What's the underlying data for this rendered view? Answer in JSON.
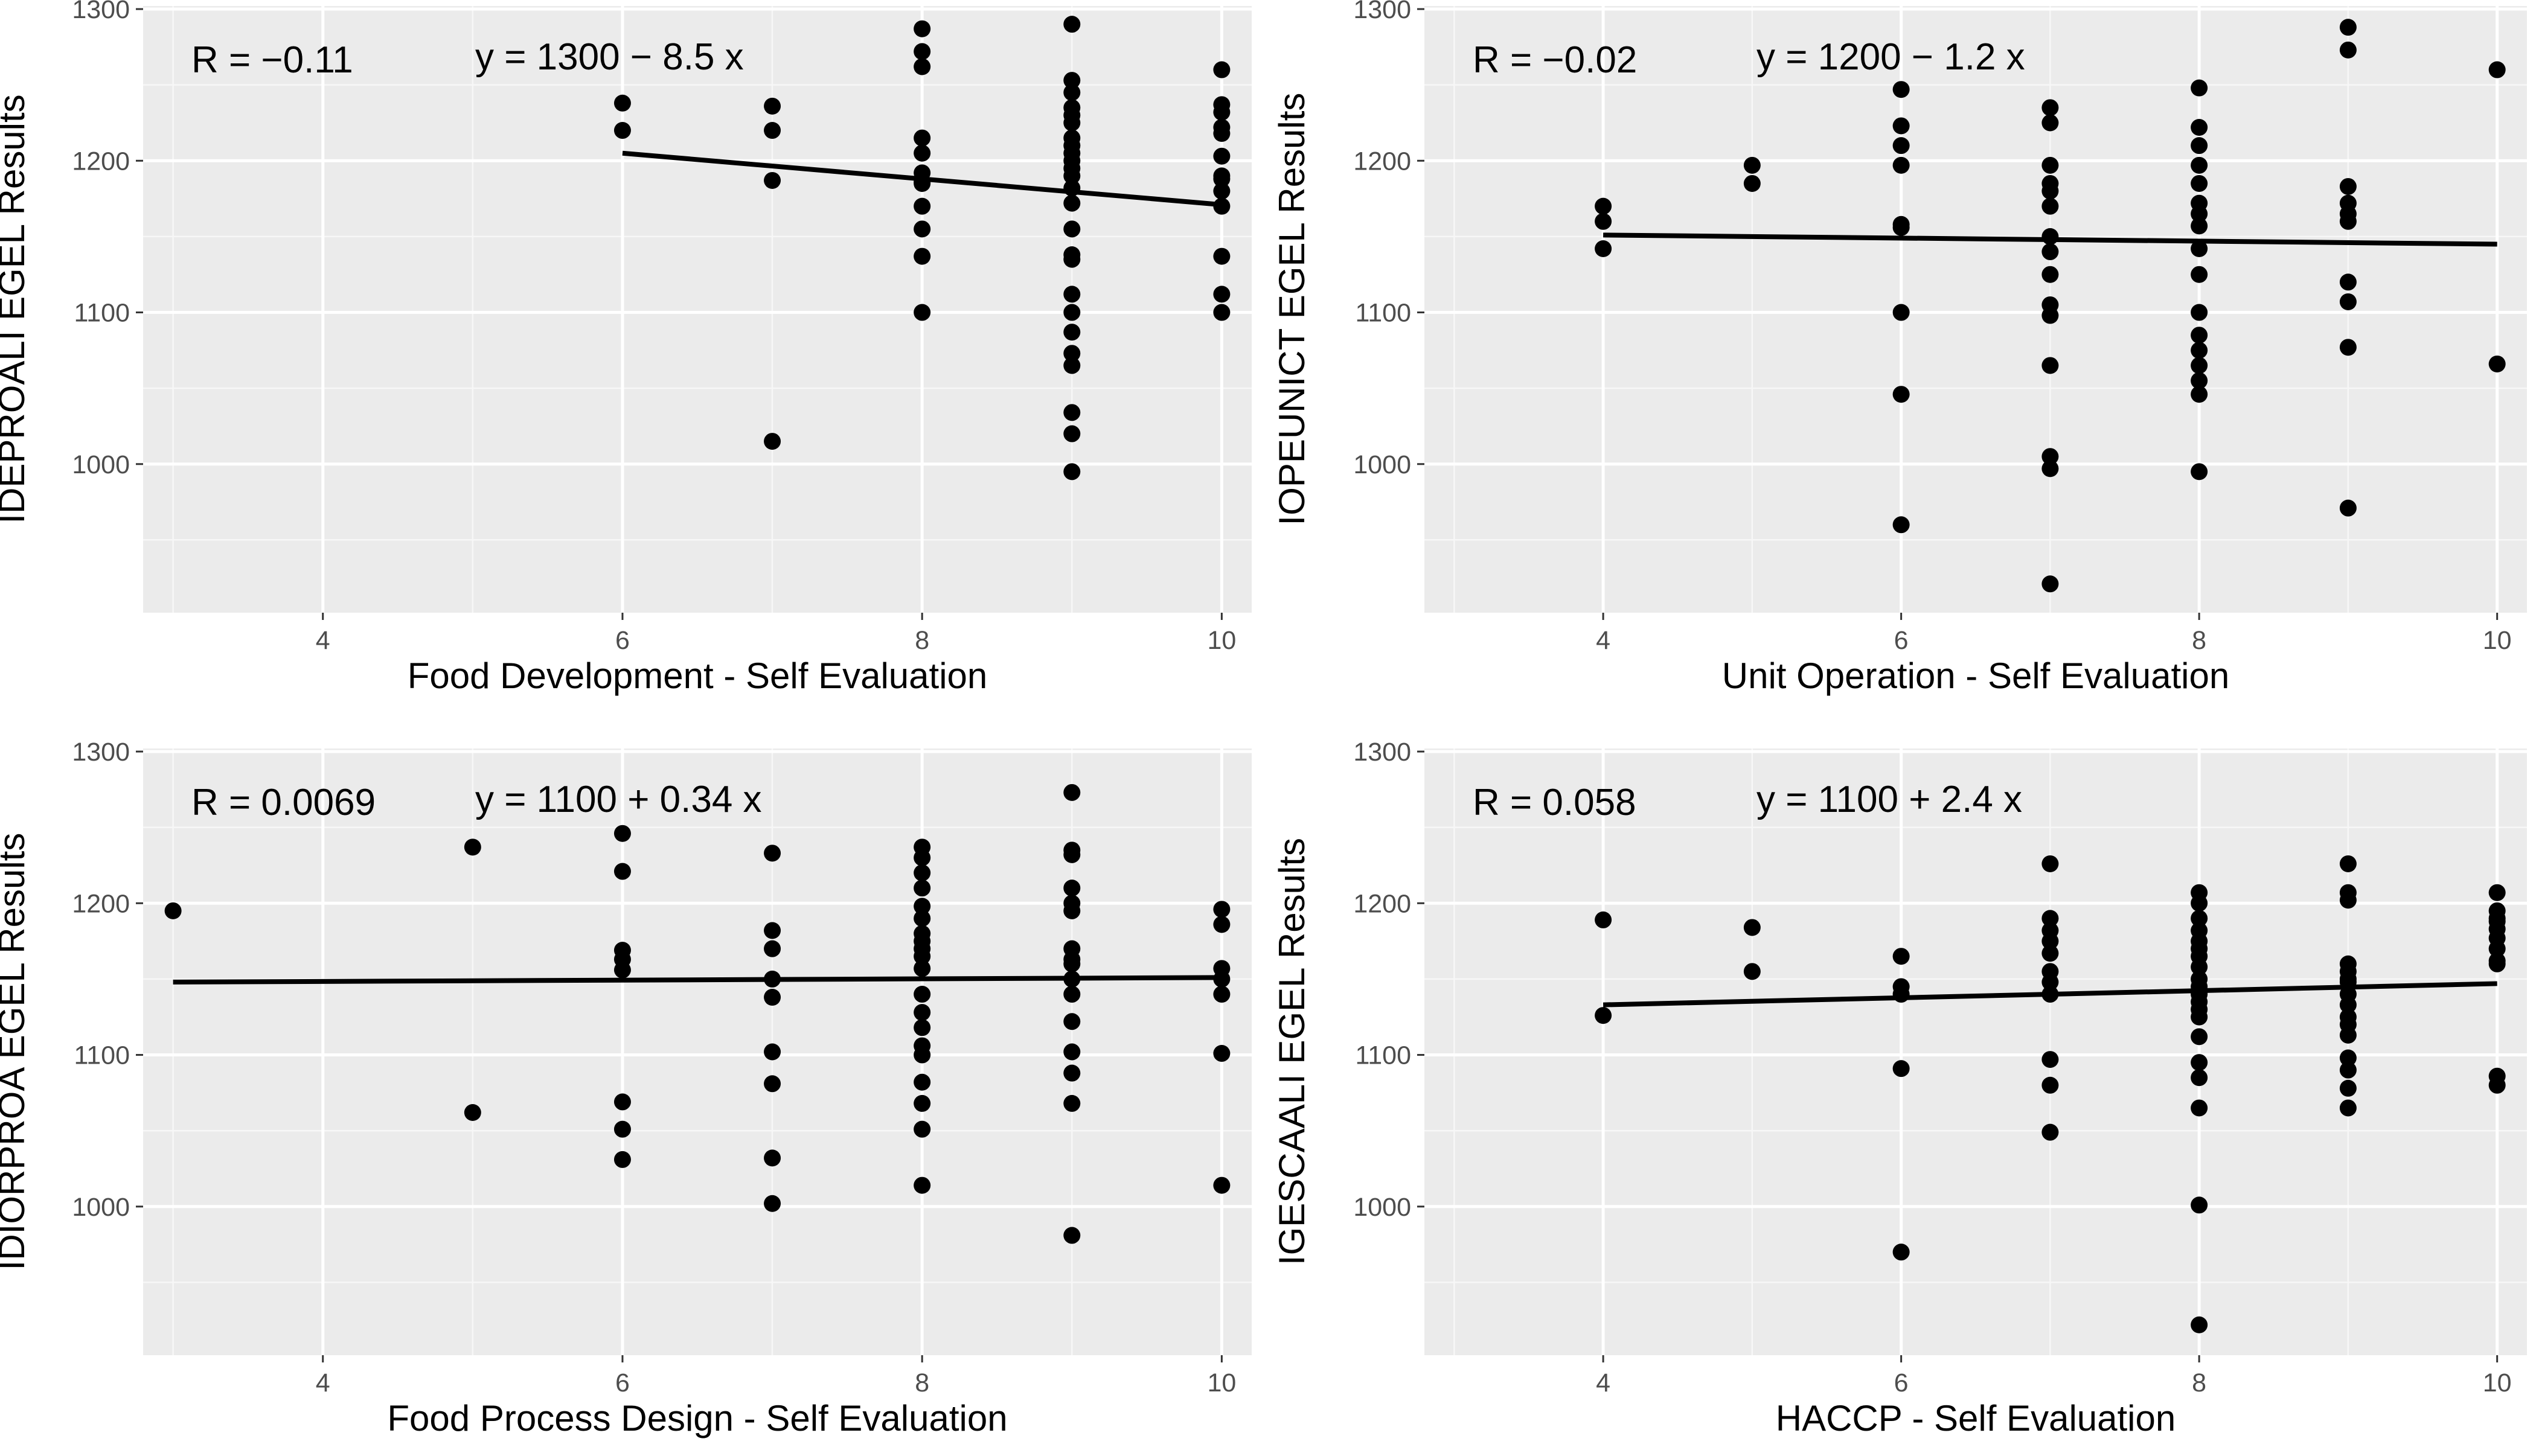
{
  "chart_data": [
    {
      "type": "scatter",
      "xlabel": "Food Development - Self Evaluation",
      "ylabel": "IDEPROALI EGEL Results",
      "xlim": [
        2.8,
        10.2
      ],
      "ylim": [
        902,
        1302
      ],
      "xticks": [
        "4",
        "6",
        "8",
        "10"
      ],
      "yticks": [
        "1000",
        "1100",
        "1200",
        "1300"
      ],
      "annotation_r": "R = −0.11",
      "annotation_eq": "y = 1300 − 8.5 x",
      "fit_line": {
        "x": [
          6,
          10
        ],
        "y": [
          1205,
          1171
        ]
      },
      "points": {
        "x": [
          6,
          6,
          7,
          7,
          7,
          7,
          8,
          8,
          8,
          8,
          8,
          8,
          8,
          8,
          8,
          8,
          8,
          8,
          9,
          9,
          9,
          9,
          9,
          9,
          9,
          9,
          9,
          9,
          9,
          9,
          9,
          9,
          9,
          9,
          9,
          9,
          9,
          9,
          9,
          9,
          9,
          9,
          9,
          10,
          10,
          10,
          10,
          10,
          10,
          10,
          10,
          10,
          10,
          10,
          10,
          10
        ],
        "y": [
          1238,
          1220,
          1236,
          1220,
          1187,
          1015,
          1287,
          1272,
          1262,
          1215,
          1205,
          1192,
          1186,
          1170,
          1155,
          1137,
          1100,
          1185,
          1290,
          1253,
          1245,
          1235,
          1225,
          1215,
          1205,
          1195,
          1190,
          1182,
          1172,
          1155,
          1138,
          1135,
          1112,
          1100,
          1087,
          1073,
          1065,
          1034,
          1020,
          995,
          1210,
          1230,
          1200,
          1260,
          1237,
          1232,
          1222,
          1218,
          1203,
          1190,
          1180,
          1170,
          1137,
          1112,
          1100,
          1188
        ]
      }
    },
    {
      "type": "scatter",
      "xlabel": "Unit Operation - Self Evaluation",
      "ylabel": "IOPEUNICT EGEL Results",
      "xlim": [
        2.8,
        10.2
      ],
      "ylim": [
        902,
        1302
      ],
      "xticks": [
        "4",
        "6",
        "8",
        "10"
      ],
      "yticks": [
        "1000",
        "1100",
        "1200",
        "1300"
      ],
      "annotation_r": "R = −0.02",
      "annotation_eq": "y = 1200 − 1.2 x",
      "fit_line": {
        "x": [
          4,
          10
        ],
        "y": [
          1151,
          1145
        ]
      },
      "points": {
        "x": [
          4,
          4,
          4,
          5,
          5,
          6,
          6,
          6,
          6,
          6,
          6,
          6,
          6,
          6,
          7,
          7,
          7,
          7,
          7,
          7,
          7,
          7,
          7,
          7,
          7,
          7,
          7,
          7,
          7,
          8,
          8,
          8,
          8,
          8,
          8,
          8,
          8,
          8,
          8,
          8,
          8,
          8,
          8,
          8,
          8,
          8,
          9,
          9,
          9,
          9,
          9,
          9,
          9,
          9,
          9,
          9,
          10,
          10
        ],
        "y": [
          1170,
          1160,
          1142,
          1197,
          1185,
          1247,
          1223,
          1210,
          1197,
          1158,
          1100,
          1046,
          960,
          1156,
          1235,
          1225,
          1197,
          1185,
          1170,
          1140,
          1125,
          1105,
          1098,
          1065,
          1005,
          997,
          921,
          1180,
          1150,
          1248,
          1222,
          1210,
          1197,
          1185,
          1172,
          1157,
          1142,
          1125,
          1100,
          1085,
          1075,
          1065,
          1055,
          1046,
          995,
          1165,
          1288,
          1273,
          1183,
          1172,
          1160,
          1120,
          1107,
          1077,
          971,
          1165,
          1260,
          1066
        ]
      }
    },
    {
      "type": "scatter",
      "xlabel": "Food Process Design - Self Evaluation",
      "ylabel": "IDIORPROA EGEL Results",
      "xlim": [
        2.8,
        10.2
      ],
      "ylim": [
        902,
        1302
      ],
      "xticks": [
        "4",
        "6",
        "8",
        "10"
      ],
      "yticks": [
        "1000",
        "1100",
        "1200",
        "1300"
      ],
      "annotation_r": "R = 0.0069",
      "annotation_eq": "y = 1100 + 0.34 x",
      "fit_line": {
        "x": [
          3,
          10
        ],
        "y": [
          1148,
          1151
        ]
      },
      "points": {
        "x": [
          3,
          5,
          5,
          6,
          6,
          6,
          6,
          6,
          6,
          6,
          6,
          7,
          7,
          7,
          7,
          7,
          7,
          7,
          7,
          7,
          8,
          8,
          8,
          8,
          8,
          8,
          8,
          8,
          8,
          8,
          8,
          8,
          8,
          8,
          8,
          8,
          8,
          8,
          8,
          8,
          9,
          9,
          9,
          9,
          9,
          9,
          9,
          9,
          9,
          9,
          9,
          9,
          9,
          9,
          9,
          9,
          10,
          10,
          10,
          10,
          10,
          10,
          10
        ],
        "y": [
          1195,
          1237,
          1062,
          1246,
          1221,
          1169,
          1163,
          1156,
          1069,
          1051,
          1031,
          1233,
          1182,
          1170,
          1138,
          1102,
          1081,
          1032,
          1002,
          1150,
          1237,
          1230,
          1220,
          1210,
          1198,
          1190,
          1180,
          1170,
          1157,
          1140,
          1128,
          1118,
          1106,
          1100,
          1082,
          1068,
          1051,
          1014,
          1175,
          1165,
          1273,
          1235,
          1232,
          1210,
          1200,
          1195,
          1170,
          1160,
          1150,
          1140,
          1122,
          1102,
          1088,
          1068,
          981,
          1163,
          1196,
          1186,
          1157,
          1140,
          1101,
          1014,
          1150
        ]
      }
    },
    {
      "type": "scatter",
      "xlabel": "HACCP - Self Evaluation",
      "ylabel": "IGESCAALI EGEL Results",
      "xlim": [
        2.8,
        10.2
      ],
      "ylim": [
        902,
        1302
      ],
      "xticks": [
        "4",
        "6",
        "8",
        "10"
      ],
      "yticks": [
        "1000",
        "1100",
        "1200",
        "1300"
      ],
      "annotation_r": "R = 0.058",
      "annotation_eq": "y = 1100 + 2.4 x",
      "fit_line": {
        "x": [
          4,
          10
        ],
        "y": [
          1133,
          1147
        ]
      },
      "points": {
        "x": [
          4,
          4,
          5,
          5,
          6,
          6,
          6,
          6,
          6,
          7,
          7,
          7,
          7,
          7,
          7,
          7,
          7,
          7,
          7,
          7,
          8,
          8,
          8,
          8,
          8,
          8,
          8,
          8,
          8,
          8,
          8,
          8,
          8,
          8,
          8,
          8,
          8,
          8,
          8,
          8,
          9,
          9,
          9,
          9,
          9,
          9,
          9,
          9,
          9,
          9,
          9,
          9,
          9,
          9,
          9,
          9,
          10,
          10,
          10,
          10,
          10,
          10,
          10,
          10,
          10,
          10,
          10
        ],
        "y": [
          1189,
          1126,
          1184,
          1155,
          1165,
          1145,
          1140,
          1091,
          970,
          1226,
          1190,
          1182,
          1167,
          1155,
          1148,
          1140,
          1097,
          1080,
          1049,
          1175,
          1207,
          1200,
          1190,
          1182,
          1175,
          1165,
          1158,
          1150,
          1140,
          1130,
          1125,
          1112,
          1095,
          1085,
          1065,
          1001,
          922,
          1170,
          1145,
          1135,
          1226,
          1207,
          1202,
          1160,
          1155,
          1148,
          1140,
          1133,
          1125,
          1113,
          1098,
          1090,
          1078,
          1065,
          1150,
          1120,
          1207,
          1195,
          1188,
          1183,
          1177,
          1170,
          1162,
          1086,
          1080,
          1160,
          1190
        ]
      }
    }
  ]
}
